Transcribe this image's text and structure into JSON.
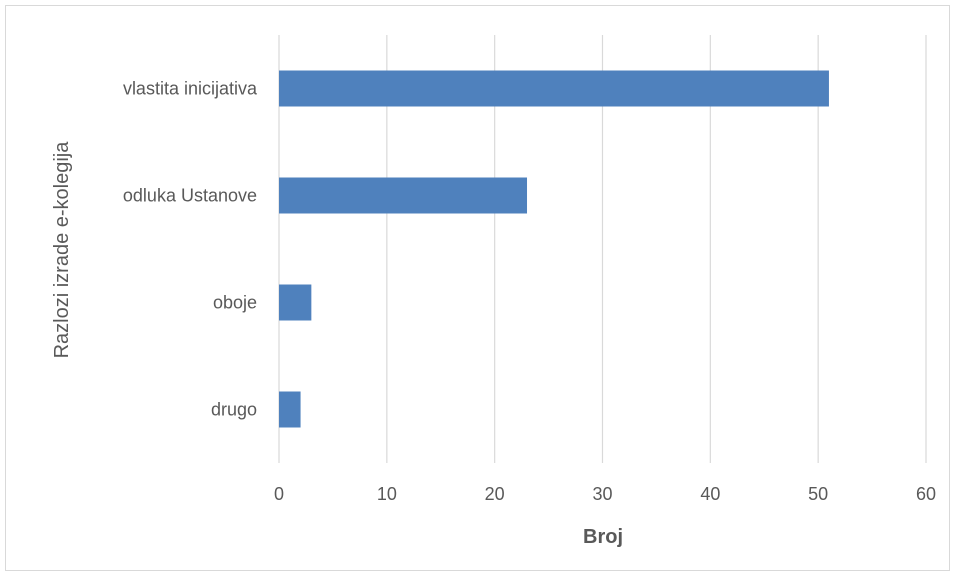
{
  "chart_data": {
    "type": "bar",
    "orientation": "horizontal",
    "categories": [
      "vlastita inicijativa",
      "odluka Ustanove",
      "oboje",
      "drugo"
    ],
    "values": [
      51,
      23,
      3,
      2
    ],
    "xlabel": "Broj",
    "ylabel": "Razlozi izrade e-kolegija",
    "xlim": [
      0,
      60
    ],
    "xticks": [
      0,
      10,
      20,
      30,
      40,
      50,
      60
    ],
    "grid": true,
    "legend": false,
    "bar_color": "#4f81bd",
    "grid_color": "#d9d9d9"
  }
}
